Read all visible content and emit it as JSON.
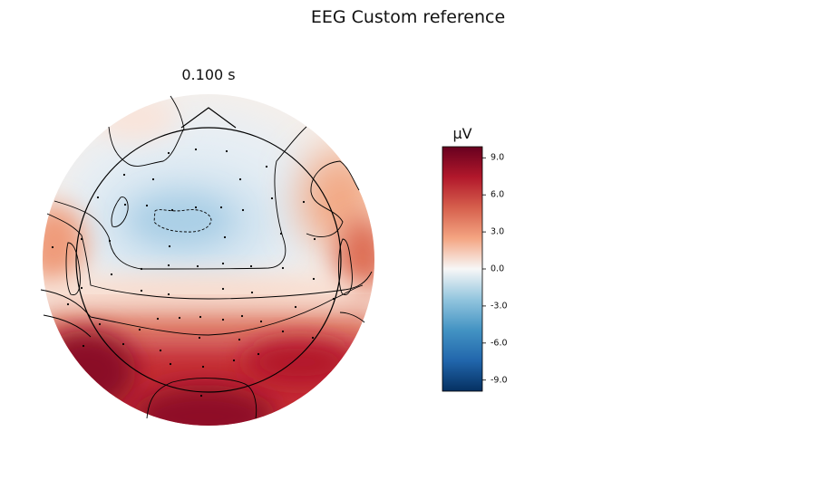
{
  "figure": {
    "title": "EEG Custom reference"
  },
  "chart_data": {
    "type": "heatmap",
    "subtype": "scalp-topomap",
    "title": "0.100 s",
    "colorbar": {
      "unit": "µV",
      "range": [
        -9.9,
        9.9
      ],
      "ticks": [
        9.0,
        6.0,
        3.0,
        0.0,
        -3.0,
        -6.0,
        -9.0
      ],
      "tick_labels": [
        "9.0",
        "6.0",
        "3.0",
        "0.0",
        "-3.0",
        "-6.0",
        "-9.0"
      ],
      "colormap": "RdBu_r",
      "colors": {
        "low": "#053061",
        "mid": "#f7f7f7",
        "high": "#67001f"
      }
    },
    "field_description_uV": {
      "front_center_min": -3.0,
      "front_periphery": 0.5,
      "temporal_sides": 5.0,
      "occipital_max": 9.5
    }
  }
}
